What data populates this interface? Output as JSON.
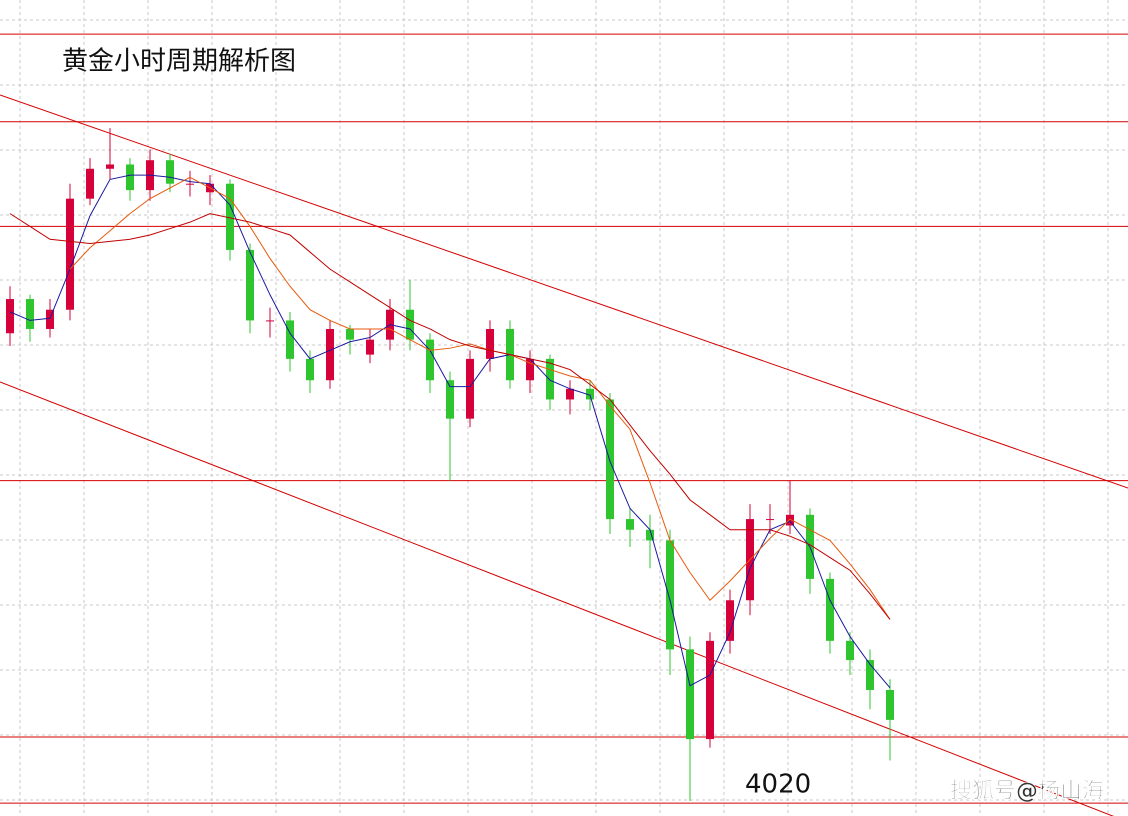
{
  "chart_data": {
    "type": "candlestick",
    "title": "黄金小时周期解析图",
    "watermark": "搜狐号@杨山海",
    "ylim": [
      4014,
      4396
    ],
    "up_color": "#d6003a",
    "down_color": "#2fc52f",
    "level_color": "#d40000",
    "levels": [
      4380,
      4339,
      4290,
      4171,
      4051,
      4020
    ],
    "level_label_index": 5,
    "open": [
      4240,
      4256,
      4242,
      4251,
      4303,
      4317,
      4319,
      4307,
      4321,
      4310,
      4306,
      4310,
      4279,
      4246,
      4246,
      4228,
      4218,
      4242,
      4230,
      4237,
      4251,
      4237,
      4218,
      4200,
      4228,
      4242,
      4218,
      4228,
      4209,
      4214,
      4209,
      4153,
      4148,
      4143,
      4092,
      4050,
      4096,
      4115,
      4153,
      4150,
      4155,
      4125,
      4096,
      4087,
      4073
    ],
    "high": [
      4262,
      4258,
      4256,
      4310,
      4322,
      4336,
      4322,
      4326,
      4324,
      4316,
      4314,
      4312,
      4282,
      4252,
      4250,
      4232,
      4246,
      4244,
      4242,
      4256,
      4265,
      4240,
      4222,
      4232,
      4246,
      4246,
      4232,
      4230,
      4218,
      4218,
      4212,
      4158,
      4155,
      4148,
      4098,
      4100,
      4120,
      4160,
      4160,
      4171,
      4158,
      4128,
      4100,
      4092,
      4078
    ],
    "low": [
      4234,
      4236,
      4238,
      4246,
      4300,
      4312,
      4302,
      4302,
      4306,
      4304,
      4300,
      4274,
      4240,
      4238,
      4222,
      4212,
      4214,
      4230,
      4226,
      4232,
      4232,
      4212,
      4171,
      4196,
      4222,
      4214,
      4212,
      4204,
      4202,
      4204,
      4146,
      4140,
      4130,
      4080,
      4021,
      4046,
      4090,
      4108,
      4146,
      4146,
      4118,
      4090,
      4080,
      4064,
      4040
    ],
    "close": [
      4256,
      4242,
      4251,
      4303,
      4317,
      4319,
      4307,
      4321,
      4310,
      4310,
      4310,
      4279,
      4246,
      4246,
      4228,
      4218,
      4242,
      4237,
      4237,
      4251,
      4237,
      4218,
      4200,
      4228,
      4242,
      4218,
      4228,
      4209,
      4214,
      4209,
      4153,
      4148,
      4143,
      4092,
      4050,
      4096,
      4115,
      4153,
      4153,
      4155,
      4125,
      4096,
      4087,
      4073,
      4059
    ],
    "series": [
      {
        "color": "#1a1aa0",
        "values": [
          4250,
          4246,
          4247,
          4270,
          4295,
          4312,
          4314,
          4314,
          4313,
          4311,
          4310,
          4300,
          4278,
          4258,
          4240,
          4228,
          4232,
          4236,
          4238,
          4244,
          4242,
          4232,
          4215,
          4215,
          4228,
          4230,
          4228,
          4218,
          4214,
          4211,
          4180,
          4158,
          4148,
          4115,
          4075,
          4080,
          4100,
          4130,
          4148,
          4152,
          4140,
          4115,
          4098,
          4085,
          4074
        ]
      },
      {
        "color": "#e8590c",
        "values": [
          null,
          null,
          null,
          4270,
          4280,
          4288,
          4296,
          4303,
          4308,
          4313,
          4308,
          4303,
          4290,
          4275,
          4262,
          4251,
          4246,
          4242,
          4242,
          4242,
          4237,
          4232,
          4233,
          4235,
          4232,
          4230,
          4226,
          4223,
          4220,
          4218,
          4206,
          4195,
          4170,
          4143,
          4128,
          4115,
          4124,
          4134,
          4144,
          4153,
          4148,
          4143,
          4132,
          4120,
          4106
        ]
      },
      {
        "color": "#c00000",
        "values": [
          4296,
          4290,
          4284,
          4283,
          4282,
          4283,
          4284,
          4286,
          4289,
          4292,
          4296,
          4294,
          4292,
          4289,
          4286,
          4278,
          4270,
          4264,
          4258,
          4252,
          4246,
          4242,
          4237,
          4234,
          4232,
          4230,
          4228,
          4226,
          4223,
          4216,
          4209,
          4197,
          4185,
          4174,
          4162,
          4155,
          4148,
          4148,
          4148,
          4145,
          4141,
          4135,
          4129,
          4118,
          4106
        ]
      }
    ]
  }
}
